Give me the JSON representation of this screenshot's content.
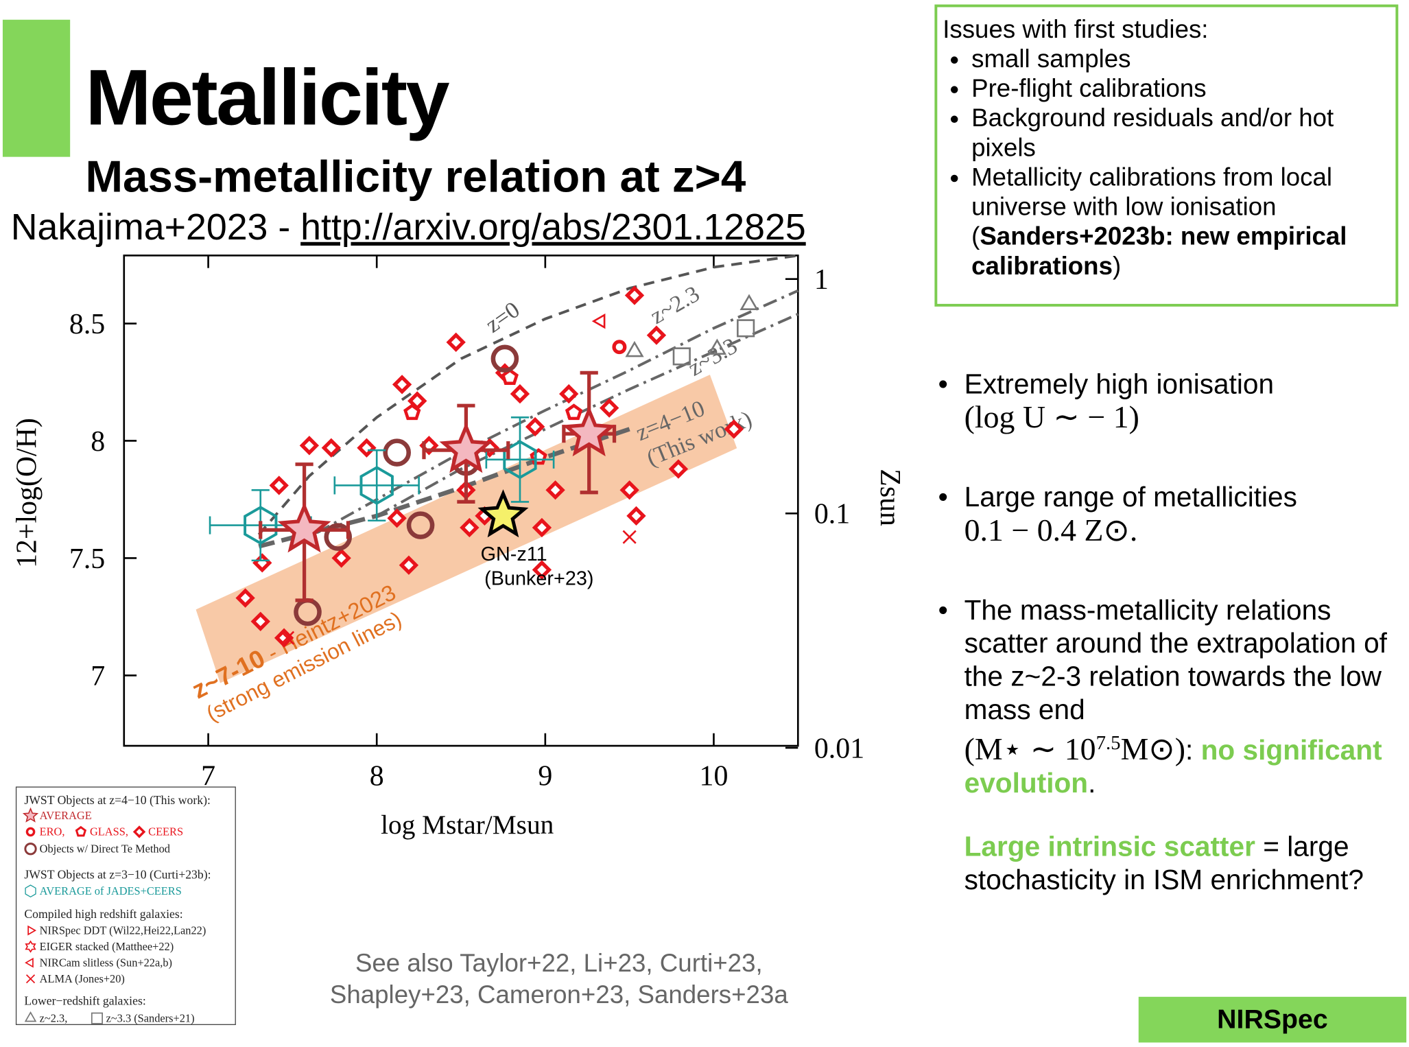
{
  "header": {
    "title": "Metallicity",
    "subtitle": "Mass-metallicity relation at z>4",
    "citation": "Nakajima+2023 - ",
    "link": "http://arxiv.org/abs/2301.12825"
  },
  "issues": {
    "heading": "Issues with first studies:",
    "items": [
      "small samples",
      "Pre-flight calibrations",
      "Background residuals and/or hot pixels",
      [
        "Metallicity calibrations from local universe with low ionisation",
        "(",
        "Sanders+2023b: new empirical calibrations",
        ")"
      ]
    ]
  },
  "bullets": [
    [
      "Extremely high ionisation",
      "(log U ∼ − 1)"
    ],
    [
      "Large range of metallicities",
      "0.1 − 0.4 Z⊙."
    ],
    [
      "The mass-metallicity relations scatter around the extrapolation of the z~2-3 relation towards the low mass end",
      "(M⋆ ∼ 10",
      "7.5",
      "M⊙)",
      ": ",
      "no significant evolution",
      "."
    ]
  ],
  "conclusion": [
    "Large intrinsic scatter",
    " = large stochasticity in ISM enrichment?"
  ],
  "see_also": [
    "See also Taylor+22, Li+23, Curti+23,",
    "Shapley+23, Cameron+23, Sanders+23a"
  ],
  "badge": "NIRSpec",
  "legend": {
    "headings": [
      "JWST Objects at z=4−10 (This work):",
      "JWST Objects at z=3−10 (Curti+23b):",
      "Compiled high redshift galaxies:",
      "Lower−redshift galaxies:"
    ]
  },
  "chart_data": {
    "type": "scatter",
    "x_label": "log Mstar/Msun",
    "y_label": "12+log(O/H)",
    "y2_label": "Zsun",
    "xlim": [
      6.5,
      10.5
    ],
    "xticks": [
      7,
      8,
      9,
      10
    ],
    "ylim": [
      6.7,
      8.79
    ],
    "yticks": [
      7,
      7.5,
      8,
      8.5
    ],
    "y2lim": [
      0.0102,
      1.26
    ],
    "y2ticks": [
      0.01,
      0.1,
      1
    ],
    "y2_log": true,
    "series": [
      {
        "name": "AVERAGE",
        "marker": "star",
        "color": "#c0282c",
        "x": [
          7.57,
          8.53,
          9.26
        ],
        "values": [
          7.62,
          7.96,
          8.03
        ],
        "yerr_minus": [
          0.3,
          0.22,
          0.25
        ],
        "yerr_plus": [
          0.28,
          0.19,
          0.26
        ],
        "xerr": [
          0.26,
          0.25,
          0.15
        ]
      },
      {
        "name": "ERO,",
        "marker": "ring",
        "color": "#e8141c",
        "x": [
          9.44
        ],
        "values": [
          8.4
        ]
      },
      {
        "name": "GLASS,",
        "marker": "pentagon",
        "color": "#e8141c",
        "x": [
          8.79,
          8.21,
          9.17,
          8.96
        ],
        "values": [
          8.27,
          8.12,
          8.12,
          7.93
        ]
      },
      {
        "name": "CEERS",
        "marker": "diamond",
        "color": "#e8141c",
        "x": [
          9.53,
          8.47,
          8.15,
          8.24,
          7.73,
          7.94,
          7.6,
          7.42,
          8.12,
          8.19,
          7.32,
          7.22,
          7.31,
          7.45,
          7.79,
          8.98,
          9.06,
          9.5,
          9.54,
          9.79,
          10.12,
          8.98,
          8.53,
          8.85,
          9.14,
          8.94,
          8.31,
          8.76,
          9.66,
          9.38,
          8.67,
          8.55,
          8.64
        ],
        "values": [
          8.62,
          8.42,
          8.24,
          8.17,
          7.97,
          7.97,
          7.98,
          7.81,
          7.67,
          7.47,
          7.48,
          7.33,
          7.23,
          7.16,
          7.5,
          7.63,
          7.79,
          7.79,
          7.68,
          7.88,
          8.05,
          7.45,
          7.79,
          8.2,
          8.2,
          8.06,
          7.98,
          8.29,
          8.45,
          8.14,
          7.97,
          7.63,
          7.68
        ]
      },
      {
        "name": "Objects w/ Direct Te Method",
        "marker": "te",
        "color": "#8b3a3a",
        "x": [
          8.76,
          8.12,
          8.26,
          7.59,
          7.77,
          8.53
        ],
        "values": [
          8.35,
          7.95,
          7.64,
          7.27,
          7.59,
          7.91
        ]
      },
      {
        "name": "AVERAGE of JADES+CEERS",
        "marker": "hexagon",
        "color": "#1a9a9a",
        "x": [
          7.31,
          8.0,
          8.85
        ],
        "values": [
          7.64,
          7.81,
          7.92
        ],
        "yerr_minus": [
          0.15,
          0.15,
          0.18
        ],
        "yerr_plus": [
          0.15,
          0.15,
          0.18
        ],
        "xerr": [
          0.3,
          0.25,
          0.2
        ]
      },
      {
        "name": "NIRSpec DDT (Wil22,Hei22,Lan22)",
        "marker": "rtriangle",
        "color": "#e8141c",
        "x": [],
        "values": []
      },
      {
        "name": "EIGER stacked (Matthee+22)",
        "marker": "hexagram",
        "color": "#e8141c",
        "x": [],
        "values": []
      },
      {
        "name": "NIRCam slitless (Sun+22a,b)",
        "marker": "ltriangle",
        "color": "#e8141c",
        "x": [
          9.33
        ],
        "values": [
          8.51
        ]
      },
      {
        "name": "ALMA (Jones+20)",
        "marker": "cross",
        "color": "#e8141c",
        "x": [
          9.5,
          7.47
        ],
        "values": [
          7.59,
          7.16
        ]
      },
      {
        "name": "z~2.3,",
        "marker": "triangle",
        "color": "#777777",
        "x": [
          10.21,
          10.02,
          9.53
        ],
        "values": [
          8.58,
          8.39,
          8.38
        ]
      },
      {
        "name": "z~3.3 (Sanders+21)",
        "marker": "square",
        "color": "#777777",
        "x": [
          10.19,
          9.81
        ],
        "values": [
          8.48,
          8.36
        ]
      },
      {
        "name": "GN-z11",
        "note": "(Bunker+23)",
        "marker": "star",
        "color": "#f5f06a",
        "x": [
          8.75
        ],
        "values": [
          7.68
        ]
      }
    ],
    "lines": [
      {
        "name": "z=0",
        "color": "#555555",
        "x": [
          7.3,
          7.6,
          8,
          8.5,
          9,
          9.5,
          10,
          10.5
        ],
        "values": [
          7.6,
          7.85,
          8.1,
          8.35,
          8.52,
          8.65,
          8.74,
          8.79
        ]
      },
      {
        "name": "z~2.3",
        "color": "#666666",
        "x": [
          7.5,
          8,
          8.5,
          9,
          9.5,
          10,
          10.5
        ],
        "values": [
          7.55,
          7.75,
          7.95,
          8.13,
          8.3,
          8.48,
          8.64
        ]
      },
      {
        "name": "z~3.3",
        "color": "#666666",
        "x": [
          8,
          8.5,
          9,
          9.5,
          10,
          10.5
        ],
        "values": [
          7.68,
          7.88,
          8.05,
          8.22,
          8.38,
          8.54
        ]
      },
      {
        "name": "z=4−10",
        "note": "(This work)",
        "color": "#666666",
        "x": [
          7.3,
          8,
          8.5,
          9,
          9.5
        ],
        "values": [
          7.55,
          7.68,
          7.8,
          7.93,
          8.05
        ]
      }
    ],
    "annotation": [
      "z~7-10",
      " - Heintz+2023",
      "(strong emission lines)"
    ]
  }
}
